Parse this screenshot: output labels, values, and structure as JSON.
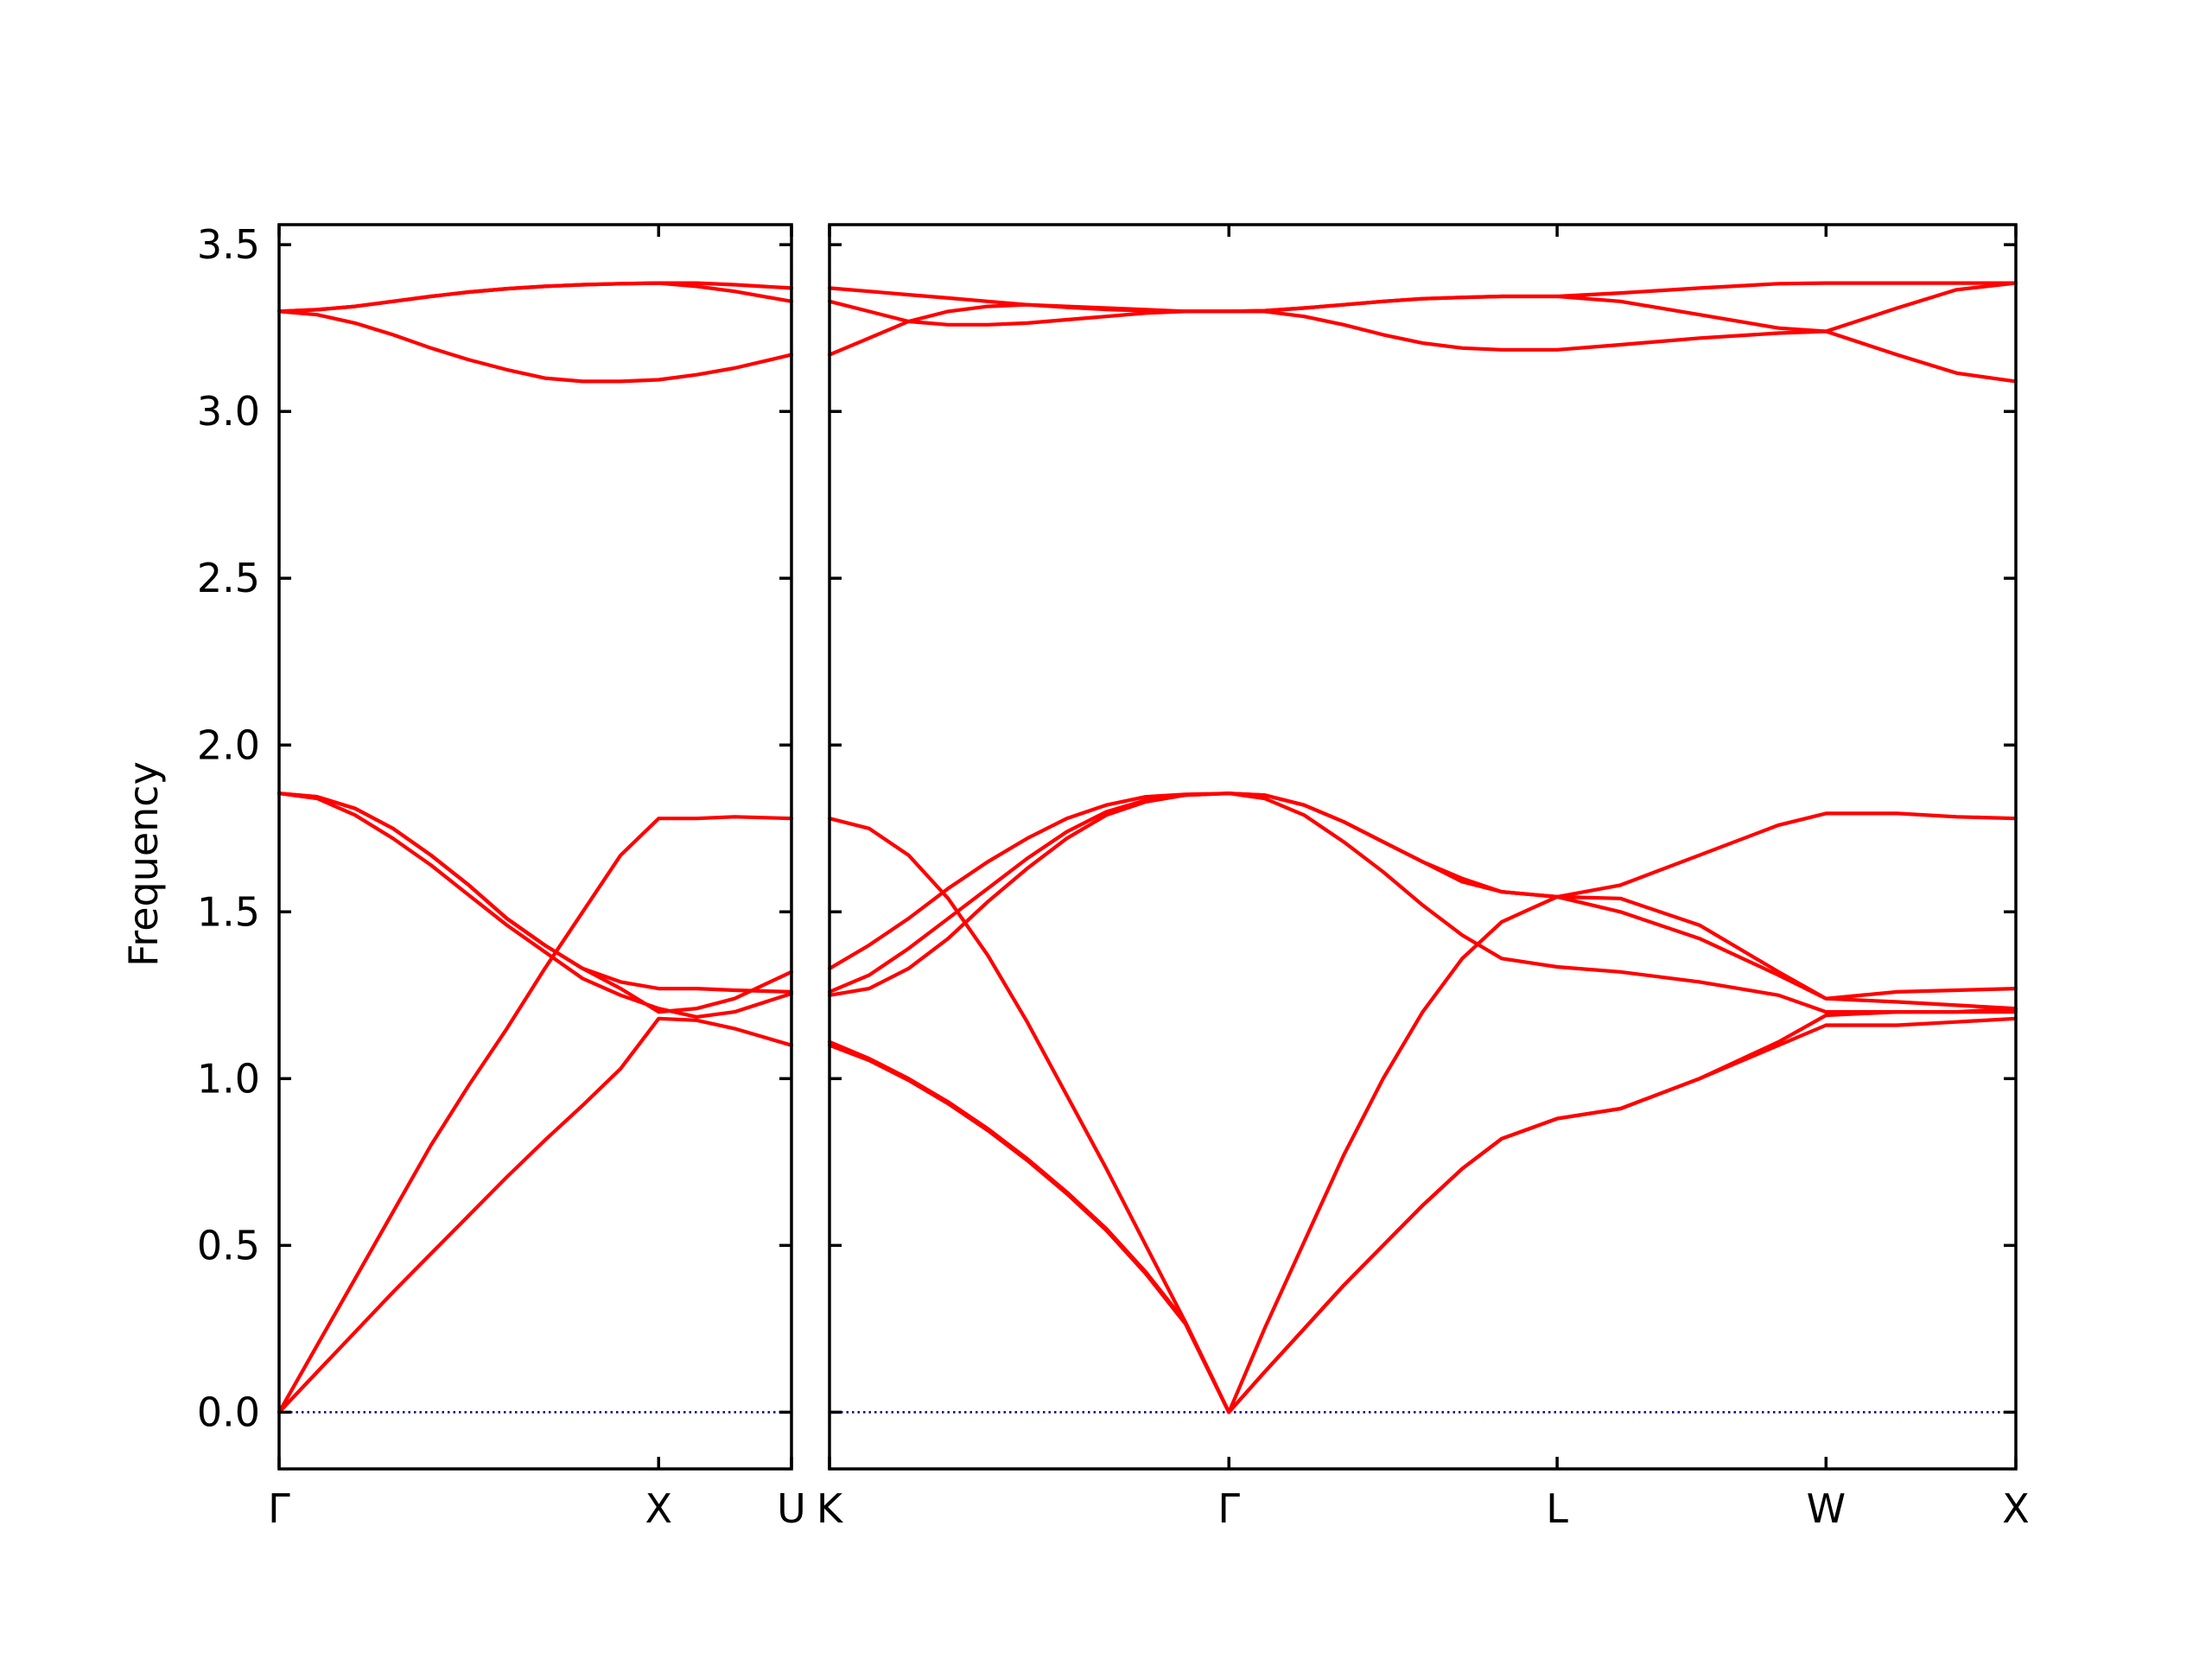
{
  "chart_data": {
    "type": "line",
    "title": "",
    "ylabel": "Frequency",
    "ylim": [
      -0.17,
      3.56
    ],
    "yticks": [
      "0.0",
      "0.5",
      "1.0",
      "1.5",
      "2.0",
      "2.5",
      "3.0",
      "3.5"
    ],
    "grid": false,
    "band_color": "#ff0000",
    "zero_line_color": "#00008b",
    "panels": [
      {
        "x_range": [
          0,
          1.35
        ],
        "ticks": [
          {
            "x": 0,
            "label": "Γ"
          },
          {
            "x": 1.0,
            "label": "X"
          },
          {
            "x": 1.35,
            "label": "U"
          }
        ],
        "series": [
          {
            "x": [
              0,
              0.1,
              0.2,
              0.3,
              0.4,
              0.5,
              0.6,
              0.7,
              0.8,
              0.9,
              1.0,
              1.1,
              1.2,
              1.35
            ],
            "y": [
              0.0,
              0.12,
              0.24,
              0.36,
              0.475,
              0.59,
              0.705,
              0.815,
              0.92,
              1.03,
              1.18,
              1.175,
              1.15,
              1.1
            ]
          },
          {
            "x": [
              0,
              0.1,
              0.2,
              0.3,
              0.4,
              0.5,
              0.6,
              0.7,
              0.8,
              0.9,
              1.0,
              1.1,
              1.2,
              1.35
            ],
            "y": [
              0.0,
              0.2,
              0.4,
              0.6,
              0.8,
              0.98,
              1.15,
              1.33,
              1.5,
              1.67,
              1.78,
              1.78,
              1.785,
              1.78
            ]
          },
          {
            "x": [
              0,
              0.1,
              0.2,
              0.3,
              0.4,
              0.5,
              0.6,
              0.7,
              0.8,
              0.9,
              1.0,
              1.1,
              1.2,
              1.35
            ],
            "y": [
              1.855,
              1.84,
              1.79,
              1.72,
              1.64,
              1.55,
              1.46,
              1.38,
              1.3,
              1.25,
              1.21,
              1.185,
              1.2,
              1.255
            ]
          },
          {
            "x": [
              0,
              0.1,
              0.2,
              0.3,
              0.4,
              0.5,
              0.6,
              0.7,
              0.8,
              0.9,
              1.0,
              1.1,
              1.2,
              1.35
            ],
            "y": [
              1.855,
              1.845,
              1.81,
              1.75,
              1.67,
              1.58,
              1.48,
              1.4,
              1.33,
              1.29,
              1.27,
              1.27,
              1.265,
              1.26
            ]
          },
          {
            "x": [
              0,
              0.1,
              0.2,
              0.3,
              0.4,
              0.5,
              0.6,
              0.7,
              0.8,
              0.9,
              1.0,
              1.1,
              1.2,
              1.35
            ],
            "y": [
              1.855,
              1.845,
              1.81,
              1.75,
              1.67,
              1.58,
              1.48,
              1.4,
              1.33,
              1.27,
              1.2,
              1.21,
              1.24,
              1.32
            ]
          },
          {
            "x": [
              0,
              0.1,
              0.2,
              0.3,
              0.4,
              0.5,
              0.6,
              0.7,
              0.8,
              0.9,
              1.0,
              1.1,
              1.2,
              1.35
            ],
            "y": [
              3.3,
              3.29,
              3.265,
              3.23,
              3.19,
              3.155,
              3.125,
              3.1,
              3.09,
              3.09,
              3.095,
              3.11,
              3.13,
              3.17
            ]
          },
          {
            "x": [
              0,
              0.1,
              0.2,
              0.3,
              0.4,
              0.5,
              0.6,
              0.7,
              0.8,
              0.9,
              1.0,
              1.1,
              1.2,
              1.35
            ],
            "y": [
              3.3,
              3.305,
              3.315,
              3.33,
              3.345,
              3.358,
              3.368,
              3.375,
              3.38,
              3.383,
              3.385,
              3.375,
              3.36,
              3.33
            ]
          },
          {
            "x": [
              0,
              0.1,
              0.2,
              0.3,
              0.4,
              0.5,
              0.6,
              0.7,
              0.8,
              0.9,
              1.0,
              1.1,
              1.2,
              1.35
            ],
            "y": [
              3.3,
              3.305,
              3.315,
              3.33,
              3.345,
              3.358,
              3.368,
              3.375,
              3.38,
              3.383,
              3.385,
              3.385,
              3.38,
              3.37
            ]
          }
        ]
      },
      {
        "x_range": [
          0,
          3.0
        ],
        "ticks": [
          {
            "x": 0,
            "label": "K"
          },
          {
            "x": 1.01,
            "label": "Γ"
          },
          {
            "x": 1.84,
            "label": "L"
          },
          {
            "x": 2.52,
            "label": "W"
          },
          {
            "x": 3.0,
            "label": "X"
          }
        ],
        "series": [
          {
            "x": [
              0,
              0.1,
              0.2,
              0.3,
              0.4,
              0.5,
              0.6,
              0.7,
              0.8,
              0.9,
              1.01,
              1.1,
              1.2,
              1.3,
              1.4,
              1.5,
              1.6,
              1.7,
              1.84,
              2.0,
              2.2,
              2.4,
              2.52,
              2.7,
              2.85,
              3.0
            ],
            "y": [
              1.11,
              1.06,
              1.0,
              0.93,
              0.85,
              0.76,
              0.66,
              0.55,
              0.42,
              0.27,
              0.0,
              0.12,
              0.25,
              0.38,
              0.5,
              0.62,
              0.73,
              0.82,
              0.88,
              0.91,
              1.0,
              1.1,
              1.16,
              1.16,
              1.17,
              1.18
            ]
          },
          {
            "x": [
              0,
              0.1,
              0.2,
              0.3,
              0.4,
              0.5,
              0.6,
              0.7,
              0.8,
              0.9,
              1.01,
              1.1,
              1.2,
              1.3,
              1.4,
              1.5,
              1.6,
              1.7,
              1.84,
              2.0,
              2.2,
              2.4,
              2.52,
              2.7,
              2.85,
              3.0
            ],
            "y": [
              1.1,
              1.055,
              0.995,
              0.925,
              0.845,
              0.755,
              0.655,
              0.545,
              0.415,
              0.265,
              0.0,
              0.12,
              0.25,
              0.38,
              0.5,
              0.62,
              0.73,
              0.82,
              0.88,
              0.91,
              1.0,
              1.11,
              1.19,
              1.2,
              1.2,
              1.21
            ]
          },
          {
            "x": [
              0,
              0.1,
              0.2,
              0.3,
              0.4,
              0.5,
              0.6,
              0.7,
              0.8,
              0.9,
              1.01,
              1.1,
              1.2,
              1.3,
              1.4,
              1.5,
              1.6,
              1.7,
              1.84,
              2.0,
              2.2,
              2.4,
              2.52,
              2.7,
              2.85,
              3.0
            ],
            "y": [
              1.78,
              1.75,
              1.67,
              1.54,
              1.37,
              1.17,
              0.95,
              0.73,
              0.5,
              0.27,
              0.0,
              0.25,
              0.51,
              0.77,
              1.0,
              1.2,
              1.36,
              1.47,
              1.545,
              1.54,
              1.46,
              1.32,
              1.24,
              1.23,
              1.22,
              1.21
            ]
          },
          {
            "x": [
              0,
              0.1,
              0.2,
              0.3,
              0.4,
              0.5,
              0.6,
              0.7,
              0.8,
              0.9,
              1.01,
              1.1,
              1.2,
              1.3,
              1.4,
              1.5,
              1.6,
              1.7,
              1.84,
              2.0,
              2.2,
              2.4,
              2.52,
              2.7,
              2.85,
              3.0
            ],
            "y": [
              1.25,
              1.27,
              1.33,
              1.42,
              1.53,
              1.63,
              1.72,
              1.79,
              1.83,
              1.85,
              1.855,
              1.84,
              1.79,
              1.71,
              1.62,
              1.52,
              1.43,
              1.36,
              1.335,
              1.32,
              1.29,
              1.25,
              1.2,
              1.2,
              1.2,
              1.2
            ]
          },
          {
            "x": [
              0,
              0.1,
              0.2,
              0.3,
              0.4,
              0.5,
              0.6,
              0.7,
              0.8,
              0.9,
              1.01,
              1.1,
              1.2,
              1.3,
              1.4,
              1.5,
              1.6,
              1.7,
              1.84,
              2.0,
              2.2,
              2.4,
              2.52,
              2.7,
              2.85,
              3.0
            ],
            "y": [
              1.26,
              1.31,
              1.39,
              1.48,
              1.57,
              1.66,
              1.74,
              1.8,
              1.835,
              1.85,
              1.855,
              1.85,
              1.82,
              1.77,
              1.71,
              1.65,
              1.59,
              1.56,
              1.545,
              1.5,
              1.42,
              1.31,
              1.24,
              1.26,
              1.265,
              1.27
            ]
          },
          {
            "x": [
              0,
              0.1,
              0.2,
              0.3,
              0.4,
              0.5,
              0.6,
              0.7,
              0.8,
              0.9,
              1.01,
              1.1,
              1.2,
              1.3,
              1.4,
              1.5,
              1.6,
              1.7,
              1.84,
              2.0,
              2.2,
              2.4,
              2.52,
              2.7,
              2.85,
              3.0
            ],
            "y": [
              1.33,
              1.4,
              1.48,
              1.57,
              1.65,
              1.72,
              1.78,
              1.82,
              1.845,
              1.852,
              1.855,
              1.85,
              1.82,
              1.77,
              1.71,
              1.65,
              1.6,
              1.56,
              1.545,
              1.58,
              1.67,
              1.76,
              1.795,
              1.795,
              1.785,
              1.78
            ]
          },
          {
            "x": [
              0,
              0.1,
              0.2,
              0.3,
              0.4,
              0.5,
              0.6,
              0.7,
              0.8,
              0.9,
              1.01,
              1.1,
              1.2,
              1.3,
              1.4,
              1.5,
              1.6,
              1.7,
              1.84,
              2.0,
              2.2,
              2.4,
              2.52,
              2.7,
              2.85,
              3.0
            ],
            "y": [
              3.17,
              3.22,
              3.27,
              3.3,
              3.315,
              3.32,
              3.315,
              3.31,
              3.305,
              3.3,
              3.3,
              3.3,
              3.285,
              3.26,
              3.23,
              3.205,
              3.19,
              3.185,
              3.185,
              3.2,
              3.22,
              3.235,
              3.24,
              3.17,
              3.115,
              3.09
            ]
          },
          {
            "x": [
              0,
              0.1,
              0.2,
              0.3,
              0.4,
              0.5,
              0.6,
              0.7,
              0.8,
              0.9,
              1.01,
              1.1,
              1.2,
              1.3,
              1.4,
              1.5,
              1.6,
              1.7,
              1.84,
              2.0,
              2.2,
              2.4,
              2.52,
              2.7,
              2.85,
              3.0
            ],
            "y": [
              3.33,
              3.3,
              3.27,
              3.26,
              3.26,
              3.265,
              3.275,
              3.285,
              3.295,
              3.3,
              3.3,
              3.302,
              3.31,
              3.32,
              3.33,
              3.338,
              3.342,
              3.345,
              3.345,
              3.33,
              3.29,
              3.25,
              3.24,
              3.31,
              3.365,
              3.385
            ]
          },
          {
            "x": [
              0,
              0.1,
              0.2,
              0.3,
              0.4,
              0.5,
              0.6,
              0.7,
              0.8,
              0.9,
              1.01,
              1.1,
              1.2,
              1.3,
              1.4,
              1.5,
              1.6,
              1.7,
              1.84,
              2.0,
              2.2,
              2.4,
              2.52,
              2.7,
              2.85,
              3.0
            ],
            "y": [
              3.37,
              3.36,
              3.35,
              3.34,
              3.33,
              3.32,
              3.312,
              3.306,
              3.302,
              3.3,
              3.3,
              3.302,
              3.31,
              3.32,
              3.33,
              3.338,
              3.342,
              3.345,
              3.345,
              3.355,
              3.37,
              3.383,
              3.385,
              3.385,
              3.385,
              3.385
            ]
          }
        ]
      }
    ]
  }
}
